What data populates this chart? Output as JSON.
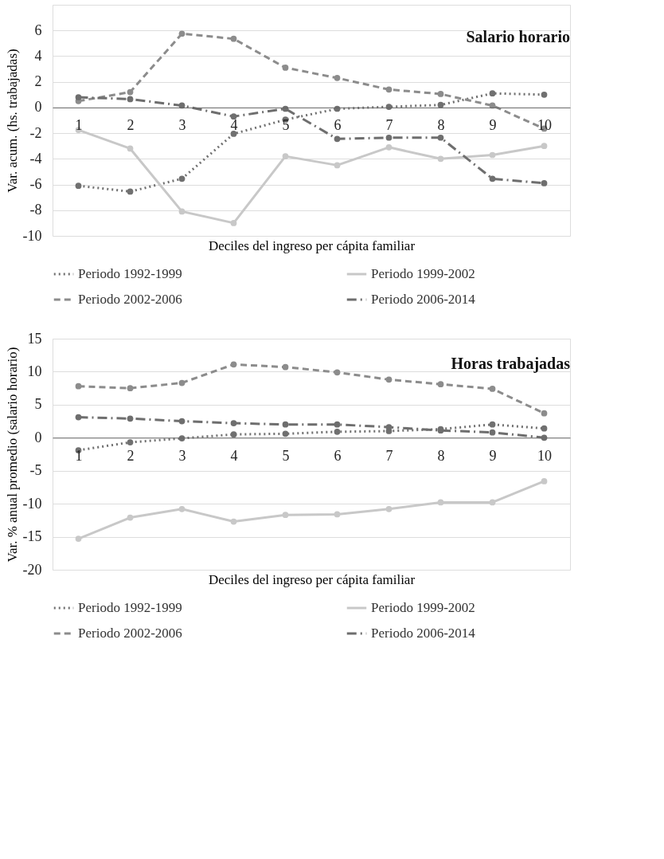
{
  "chart_data": [
    {
      "type": "line",
      "title": "Salario horario",
      "xlabel": "Deciles del ingreso per cápita familiar",
      "ylabel": "Var. acum. (hs. trabajadas)",
      "categories": [
        "1",
        "2",
        "3",
        "4",
        "5",
        "6",
        "7",
        "8",
        "9",
        "10"
      ],
      "ylim": [
        -10,
        8
      ],
      "yticks": [
        -10,
        -8,
        -6,
        -4,
        -2,
        0,
        2,
        4,
        6,
        {
          "value": 8,
          "label": null
        }
      ],
      "grid": "y",
      "legend": "bottom",
      "marker": "circle",
      "series": [
        {
          "name": "Periodo 1992-1999",
          "color": "#707070",
          "line_style": "dotted",
          "values": [
            -6.1,
            -6.55,
            -5.55,
            -2.05,
            -0.95,
            -0.1,
            0.05,
            0.2,
            1.1,
            1.0
          ]
        },
        {
          "name": "Periodo 1999-2002",
          "color": "#c8c8c8",
          "line_style": "solid",
          "values": [
            -1.75,
            -3.2,
            -8.1,
            -9.0,
            -3.8,
            -4.5,
            -3.1,
            -4.0,
            -3.7,
            -3.0
          ]
        },
        {
          "name": "Periodo 2002-2006",
          "color": "#8c8c8c",
          "line_style": "dashed",
          "values": [
            0.5,
            1.2,
            5.75,
            5.35,
            3.1,
            2.3,
            1.4,
            1.05,
            0.15,
            -1.65
          ]
        },
        {
          "name": "Periodo 2006-2014",
          "color": "#6e6e6e",
          "line_style": "dashdot",
          "values": [
            0.8,
            0.65,
            0.15,
            -0.7,
            -0.1,
            -2.45,
            -2.35,
            -2.35,
            -5.55,
            -5.9
          ]
        }
      ]
    },
    {
      "type": "line",
      "title": "Horas trabajadas",
      "xlabel": "Deciles del ingreso per cápita familiar",
      "ylabel": "Var. % anual promedio (salario horario)",
      "categories": [
        "1",
        "2",
        "3",
        "4",
        "5",
        "6",
        "7",
        "8",
        "9",
        "10"
      ],
      "ylim": [
        -20,
        15
      ],
      "yticks": [
        -20,
        -15,
        -10,
        -5,
        0,
        5,
        10,
        15
      ],
      "grid": "y",
      "legend": "bottom",
      "marker": "circle",
      "series": [
        {
          "name": "Periodo 1992-1999",
          "color": "#707070",
          "line_style": "dotted",
          "values": [
            -1.9,
            -0.7,
            -0.1,
            0.5,
            0.6,
            0.9,
            1.0,
            1.3,
            2.0,
            1.4
          ]
        },
        {
          "name": "Periodo 1999-2002",
          "color": "#c8c8c8",
          "line_style": "solid",
          "values": [
            -15.3,
            -12.1,
            -10.8,
            -12.7,
            -11.7,
            -11.6,
            -10.8,
            -9.8,
            -9.8,
            -6.6
          ]
        },
        {
          "name": "Periodo 2002-2006",
          "color": "#8c8c8c",
          "line_style": "dashed",
          "values": [
            7.8,
            7.5,
            8.3,
            11.1,
            10.7,
            9.9,
            8.8,
            8.1,
            7.4,
            3.7
          ]
        },
        {
          "name": "Periodo 2006-2014",
          "color": "#6e6e6e",
          "line_style": "dashdot",
          "values": [
            3.1,
            2.9,
            2.5,
            2.2,
            2.0,
            2.0,
            1.6,
            1.1,
            0.8,
            0.0
          ]
        }
      ]
    }
  ]
}
